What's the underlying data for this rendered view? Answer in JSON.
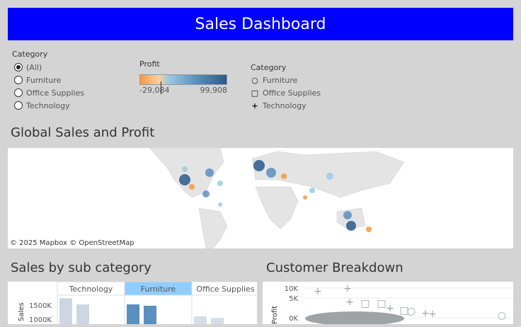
{
  "header": {
    "title": "Sales Dashboard"
  },
  "filter": {
    "label": "Category",
    "options": [
      {
        "label": "(All)",
        "selected": true
      },
      {
        "label": "Furniture",
        "selected": false
      },
      {
        "label": "Office Supplies",
        "selected": false
      },
      {
        "label": "Technology",
        "selected": false
      }
    ]
  },
  "profit_legend": {
    "label": "Profit",
    "min": "-29,084",
    "max": "99,908",
    "colors": [
      "#f59a3c",
      "#9ecae1",
      "#2a5a8c"
    ]
  },
  "shape_legend": {
    "label": "Category",
    "items": [
      {
        "label": "Furniture",
        "icon": "circle-icon"
      },
      {
        "label": "Office Supplies",
        "icon": "square-icon"
      },
      {
        "label": "Technology",
        "icon": "plus-icon"
      }
    ]
  },
  "map": {
    "title": "Global Sales and Profit",
    "attribution": "© 2025 Mapbox  © OpenStreetMap"
  },
  "sales_chart": {
    "title": "Sales by sub category"
  },
  "customer_chart": {
    "title": "Customer Breakdown"
  },
  "chart_data": [
    {
      "type": "bar",
      "title": "Sales by sub category",
      "panels": [
        "Technology",
        "Furniture",
        "Office Supplies"
      ],
      "highlighted_panel": "Furniture",
      "ylabel": "Sales",
      "yticks": [
        "1500K",
        "1000K"
      ],
      "series": [
        {
          "panel": "Technology",
          "values": [
            1700,
            1520
          ],
          "color": "#cdd6e2"
        },
        {
          "panel": "Furniture",
          "values": [
            1520,
            1480
          ],
          "color": "#5a8fc0"
        },
        {
          "panel": "Office Supplies",
          "values": [
            1170,
            1120
          ],
          "color": "#d5dde7"
        }
      ]
    },
    {
      "type": "scatter",
      "title": "Customer Breakdown",
      "ylabel": "Profit",
      "yticks": [
        "10K",
        "5K",
        "0K"
      ],
      "color": "#9ea3a3"
    }
  ]
}
